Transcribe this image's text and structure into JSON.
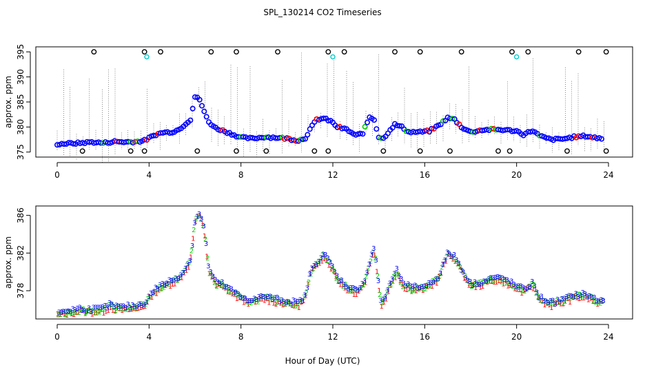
{
  "chart_data": [
    {
      "type": "scatter",
      "title": "SPL_130214  CO2 Timeseries",
      "xlabel": "",
      "ylabel": "approx. ppm",
      "xlim": [
        0,
        24
      ],
      "ylim": [
        374,
        396
      ],
      "xticks": [
        0,
        4,
        8,
        12,
        16,
        20,
        24
      ],
      "yticks": [
        375,
        380,
        385,
        390,
        395
      ],
      "series_colors": {
        "points": "#0000ff",
        "high": "#ff0000",
        "mid": "#00cc00",
        "outliers": "#000000",
        "cyan": "#00cccc"
      },
      "profile": [
        [
          0.0,
          376.6
        ],
        [
          0.5,
          376.7
        ],
        [
          1.0,
          376.8
        ],
        [
          1.5,
          377.0
        ],
        [
          2.0,
          376.8
        ],
        [
          2.5,
          377.1
        ],
        [
          3.0,
          377.0
        ],
        [
          3.5,
          377.1
        ],
        [
          3.8,
          377.3
        ],
        [
          4.0,
          377.8
        ],
        [
          4.3,
          378.5
        ],
        [
          4.6,
          378.9
        ],
        [
          5.0,
          379.0
        ],
        [
          5.3,
          379.5
        ],
        [
          5.5,
          380.3
        ],
        [
          5.8,
          381.5
        ],
        [
          6.0,
          386.0
        ],
        [
          6.2,
          385.5
        ],
        [
          6.4,
          383.0
        ],
        [
          6.6,
          381.0
        ],
        [
          6.9,
          379.8
        ],
        [
          7.2,
          379.3
        ],
        [
          7.6,
          378.6
        ],
        [
          8.0,
          377.9
        ],
        [
          8.5,
          377.7
        ],
        [
          9.0,
          378.0
        ],
        [
          9.5,
          377.9
        ],
        [
          10.0,
          377.7
        ],
        [
          10.5,
          377.3
        ],
        [
          10.8,
          377.8
        ],
        [
          11.0,
          379.5
        ],
        [
          11.3,
          381.5
        ],
        [
          11.6,
          381.7
        ],
        [
          11.9,
          381.2
        ],
        [
          12.2,
          380.0
        ],
        [
          12.6,
          379.5
        ],
        [
          13.0,
          378.3
        ],
        [
          13.3,
          378.8
        ],
        [
          13.6,
          382.0
        ],
        [
          13.8,
          381.5
        ],
        [
          14.0,
          378.0
        ],
        [
          14.2,
          377.7
        ],
        [
          14.5,
          379.5
        ],
        [
          14.7,
          380.5
        ],
        [
          15.0,
          380.0
        ],
        [
          15.3,
          379.0
        ],
        [
          15.8,
          379.0
        ],
        [
          16.2,
          379.2
        ],
        [
          16.6,
          380.3
        ],
        [
          17.0,
          381.8
        ],
        [
          17.3,
          381.5
        ],
        [
          17.6,
          380.0
        ],
        [
          18.0,
          379.0
        ],
        [
          18.5,
          379.4
        ],
        [
          19.0,
          379.5
        ],
        [
          19.5,
          379.4
        ],
        [
          20.0,
          379.2
        ],
        [
          20.3,
          378.5
        ],
        [
          20.7,
          379.3
        ],
        [
          21.0,
          378.2
        ],
        [
          21.5,
          377.5
        ],
        [
          22.0,
          377.6
        ],
        [
          22.5,
          378.0
        ],
        [
          23.0,
          378.2
        ],
        [
          23.5,
          377.8
        ],
        [
          23.8,
          377.7
        ]
      ],
      "outliers_high": [
        [
          1.6,
          395
        ],
        [
          3.8,
          395
        ],
        [
          4.5,
          395
        ],
        [
          6.7,
          395
        ],
        [
          7.8,
          395
        ],
        [
          9.6,
          395
        ],
        [
          11.8,
          395
        ],
        [
          12.5,
          395
        ],
        [
          14.7,
          395
        ],
        [
          15.8,
          395
        ],
        [
          17.6,
          395
        ],
        [
          19.8,
          395
        ],
        [
          20.5,
          395
        ],
        [
          22.7,
          395
        ],
        [
          23.9,
          395
        ]
      ],
      "outliers_low": [
        [
          1.1,
          375.2
        ],
        [
          3.2,
          375.2
        ],
        [
          3.8,
          375.2
        ],
        [
          6.1,
          375.2
        ],
        [
          7.8,
          375.2
        ],
        [
          9.1,
          375.2
        ],
        [
          11.2,
          375.2
        ],
        [
          11.8,
          375.2
        ],
        [
          14.2,
          375.2
        ],
        [
          15.8,
          375.2
        ],
        [
          17.1,
          375.2
        ],
        [
          19.2,
          375.2
        ],
        [
          19.7,
          375.2
        ],
        [
          22.2,
          375.2
        ],
        [
          23.9,
          375.2
        ]
      ],
      "cyan_points": [
        [
          3.9,
          394
        ],
        [
          12.0,
          394
        ],
        [
          20.0,
          394
        ]
      ]
    },
    {
      "type": "scatter",
      "title": "",
      "xlabel": "Hour of Day (UTC)",
      "ylabel": "approx. ppm",
      "xlim": [
        0,
        24
      ],
      "ylim": [
        375,
        387
      ],
      "xticks": [
        0,
        4,
        8,
        12,
        16,
        20,
        24
      ],
      "yticks": [
        378,
        382,
        386
      ],
      "series": [
        {
          "name": "1",
          "color": "#ff0000"
        },
        {
          "name": "2",
          "color": "#00cc00"
        },
        {
          "name": "3",
          "color": "#0000ff"
        }
      ],
      "profile": [
        [
          0.0,
          375.6
        ],
        [
          0.5,
          375.8
        ],
        [
          1.0,
          376.0
        ],
        [
          1.5,
          375.9
        ],
        [
          2.0,
          376.0
        ],
        [
          2.3,
          376.4
        ],
        [
          2.7,
          376.1
        ],
        [
          3.0,
          376.2
        ],
        [
          3.5,
          376.3
        ],
        [
          3.9,
          376.8
        ],
        [
          4.1,
          377.7
        ],
        [
          4.4,
          378.3
        ],
        [
          4.8,
          378.8
        ],
        [
          5.2,
          379.2
        ],
        [
          5.5,
          380.0
        ],
        [
          5.8,
          381.2
        ],
        [
          6.0,
          385.5
        ],
        [
          6.2,
          386.2
        ],
        [
          6.4,
          384.5
        ],
        [
          6.6,
          380.2
        ],
        [
          6.9,
          378.8
        ],
        [
          7.2,
          378.6
        ],
        [
          7.6,
          377.9
        ],
        [
          8.0,
          377.2
        ],
        [
          8.5,
          376.9
        ],
        [
          9.0,
          377.3
        ],
        [
          9.5,
          377.0
        ],
        [
          10.0,
          376.8
        ],
        [
          10.5,
          376.6
        ],
        [
          10.8,
          377.3
        ],
        [
          11.0,
          379.8
        ],
        [
          11.3,
          381.0
        ],
        [
          11.6,
          381.8
        ],
        [
          11.9,
          380.8
        ],
        [
          12.2,
          379.3
        ],
        [
          12.6,
          378.4
        ],
        [
          13.0,
          377.9
        ],
        [
          13.4,
          379.0
        ],
        [
          13.6,
          381.0
        ],
        [
          13.8,
          382.6
        ],
        [
          13.95,
          379.5
        ],
        [
          14.1,
          376.6
        ],
        [
          14.3,
          377.4
        ],
        [
          14.6,
          379.3
        ],
        [
          14.8,
          380.1
        ],
        [
          15.0,
          378.8
        ],
        [
          15.4,
          378.2
        ],
        [
          15.8,
          378.3
        ],
        [
          16.2,
          378.6
        ],
        [
          16.6,
          379.4
        ],
        [
          17.0,
          381.9
        ],
        [
          17.3,
          381.6
        ],
        [
          17.6,
          380.2
        ],
        [
          18.0,
          378.6
        ],
        [
          18.5,
          378.8
        ],
        [
          19.0,
          379.3
        ],
        [
          19.5,
          379.1
        ],
        [
          19.9,
          378.5
        ],
        [
          20.3,
          378.0
        ],
        [
          20.7,
          378.7
        ],
        [
          21.0,
          377.2
        ],
        [
          21.5,
          376.6
        ],
        [
          22.0,
          376.9
        ],
        [
          22.5,
          377.4
        ],
        [
          23.0,
          377.5
        ],
        [
          23.5,
          376.9
        ],
        [
          23.8,
          376.8
        ]
      ]
    }
  ]
}
